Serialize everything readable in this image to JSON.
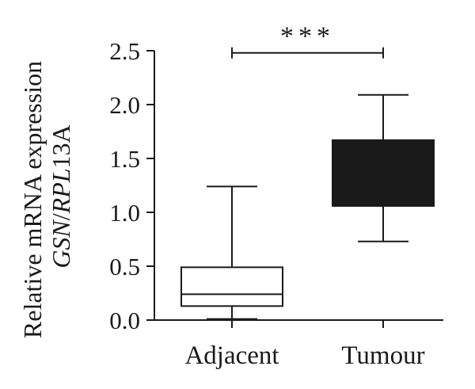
{
  "chart_data": {
    "type": "box",
    "ylabel_line1": "Relative mRNA expression",
    "ylabel_line2": {
      "gene": "GSN",
      "sep": "/",
      "ref": "RPL",
      "suffix": "13A"
    },
    "ylim": [
      0.0,
      2.5
    ],
    "yticks": [
      "0.0",
      "0.5",
      "1.0",
      "1.5",
      "2.0",
      "2.5"
    ],
    "categories": [
      "Adjacent",
      "Tumour"
    ],
    "boxes": [
      {
        "category": "Adjacent",
        "min": 0.01,
        "q1": 0.13,
        "median": 0.24,
        "q3": 0.49,
        "max": 1.24,
        "fill": "#ffffff"
      },
      {
        "category": "Tumour",
        "min": 0.73,
        "q1": 1.06,
        "median": 1.06,
        "q3": 1.67,
        "max": 2.09,
        "fill": "#1a1a1a"
      }
    ],
    "significance": {
      "label": "***",
      "from": "Adjacent",
      "to": "Tumour",
      "y": 2.48
    },
    "colors": {
      "ink": "#1a1a1a",
      "background": "#ffffff"
    }
  }
}
